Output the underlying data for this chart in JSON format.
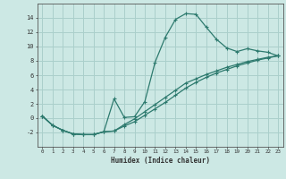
{
  "xlabel": "Humidex (Indice chaleur)",
  "background_color": "#cce8e4",
  "grid_color": "#aacfcb",
  "line_color": "#2d7a6e",
  "line1_y": [
    0.3,
    -1.0,
    -1.7,
    -2.2,
    -2.3,
    -2.3,
    -1.9,
    2.7,
    0.1,
    0.2,
    2.3,
    7.8,
    11.3,
    13.8,
    14.6,
    14.5,
    12.7,
    11.0,
    9.8,
    9.3,
    9.7,
    9.4,
    9.2,
    8.7
  ],
  "line2_y": [
    0.3,
    -1.0,
    -1.7,
    -2.2,
    -2.3,
    -2.3,
    -1.9,
    -1.8,
    -1.1,
    -0.5,
    0.4,
    1.3,
    2.2,
    3.2,
    4.2,
    5.0,
    5.7,
    6.3,
    6.8,
    7.3,
    7.7,
    8.1,
    8.4,
    8.7
  ],
  "line3_y": [
    0.3,
    -1.0,
    -1.7,
    -2.2,
    -2.3,
    -2.3,
    -1.9,
    -1.8,
    -0.9,
    -0.1,
    0.9,
    1.9,
    2.9,
    3.9,
    4.9,
    5.5,
    6.1,
    6.6,
    7.1,
    7.5,
    7.9,
    8.2,
    8.5,
    8.7
  ],
  "ylim": [
    -4,
    16
  ],
  "xlim": [
    -0.5,
    23.5
  ],
  "yticks": [
    -2,
    0,
    2,
    4,
    6,
    8,
    10,
    12,
    14
  ],
  "xticks": [
    0,
    1,
    2,
    3,
    4,
    5,
    6,
    7,
    8,
    9,
    10,
    11,
    12,
    13,
    14,
    15,
    16,
    17,
    18,
    19,
    20,
    21,
    22,
    23
  ]
}
